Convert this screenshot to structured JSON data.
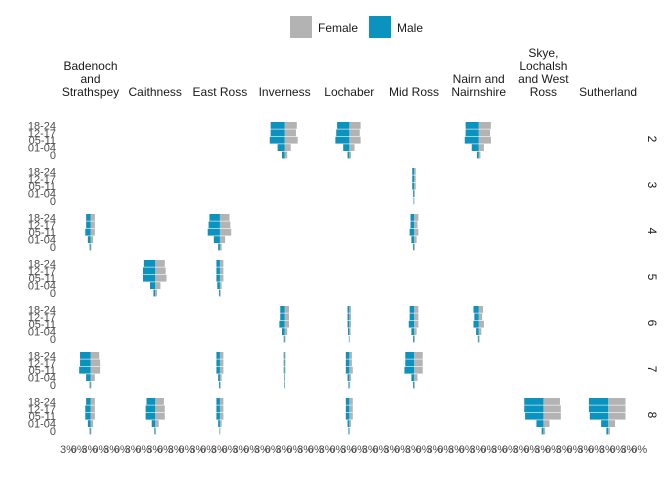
{
  "chart_data": {
    "type": "bar",
    "subtype": "population-pyramid-facet-grid",
    "legend": {
      "position": "top",
      "entries": [
        "Female",
        "Male"
      ]
    },
    "colors": {
      "Female": "#b3b3b3",
      "Male": "#0a93bf"
    },
    "columns": [
      "Badenoch and Strathspey",
      "Caithness",
      "East Ross",
      "Inverness",
      "Lochaber",
      "Mid Ross",
      "Nairn and Nairnshire",
      "Skye, Lochalsh and West Ross",
      "Sutherland"
    ],
    "column_labels": [
      [
        "Badenoch",
        "and",
        "Strathspey"
      ],
      [
        "Caithness"
      ],
      [
        "East Ross"
      ],
      [
        "Inverness"
      ],
      [
        "Lochaber"
      ],
      [
        "Mid Ross"
      ],
      [
        "Nairn and",
        "Nairnshire"
      ],
      [
        "Skye,",
        "Lochalsh",
        "and West",
        "Ross"
      ],
      [
        "Sutherland"
      ]
    ],
    "rows": [
      "2",
      "3",
      "4",
      "5",
      "6",
      "7",
      "8"
    ],
    "age_groups": [
      "0",
      "01-04",
      "05-11",
      "12-17",
      "18-24"
    ],
    "x_ticks": [
      "3%",
      "0%",
      "3%",
      "0%",
      "3%",
      "0%",
      "3%",
      "0%",
      "3%",
      "0%",
      "3%",
      "0%",
      "3%",
      "0%",
      "3%",
      "0%",
      "3%",
      "0%",
      "3%",
      "0%",
      "3%",
      "0%",
      "3%",
      "0%",
      "3%",
      "0%",
      "3%",
      "0%",
      "3%",
      "0%",
      "3%",
      "0%",
      "3%",
      "0%",
      "3%",
      "0%",
      "3%",
      "0%",
      "3%",
      "0%",
      "3%",
      "0%",
      "3%",
      "0%",
      "3%",
      "0%",
      "3%",
      "0%",
      "3%",
      "0%",
      "3%",
      "0%",
      "3%",
      "0%"
    ],
    "x_tick_labels": [
      "3%",
      "0%",
      "3%",
      "0%",
      "3%",
      "0%",
      "3%",
      "0%",
      "3%",
      "0%",
      "3%",
      "0%",
      "3%",
      "0%",
      "3%",
      "0%",
      "3%",
      "0%",
      "3%",
      "0%",
      "3%",
      "0%",
      "3%",
      "0%",
      "3%",
      "0%",
      "3%",
      "0%",
      "3%",
      "0%",
      "3%",
      "0%",
      "3%",
      "0%",
      "3%",
      "0%",
      "3%",
      "0%",
      "3%",
      "0%",
      "3%",
      "0%",
      "3%",
      "0%",
      "3%",
      "0%",
      "3%",
      "0%",
      "3%",
      "0%",
      "3%",
      "0%",
      "3%",
      "0%"
    ],
    "xlim": [
      -3.5,
      3.5
    ],
    "panels": [
      {
        "row": "2",
        "col": "Inverness",
        "male": [
          0.3,
          0.8,
          1.7,
          1.6,
          1.6
        ],
        "female": [
          0.3,
          0.7,
          1.5,
          1.3,
          1.4
        ]
      },
      {
        "row": "2",
        "col": "Lochaber",
        "male": [
          0.2,
          0.7,
          1.6,
          1.5,
          1.4
        ],
        "female": [
          0.2,
          0.6,
          1.3,
          1.2,
          1.3
        ]
      },
      {
        "row": "2",
        "col": "Nairn and Nairnshire",
        "male": [
          0.2,
          0.8,
          1.6,
          1.5,
          1.5
        ],
        "female": [
          0.2,
          0.6,
          1.4,
          1.3,
          1.4
        ]
      },
      {
        "row": "3",
        "col": "Mid Ross",
        "male": [
          0.05,
          0.1,
          0.2,
          0.2,
          0.2
        ],
        "female": [
          0.05,
          0.1,
          0.2,
          0.2,
          0.2
        ]
      },
      {
        "row": "4",
        "col": "Badenoch and Strathspey",
        "male": [
          0.1,
          0.3,
          0.6,
          0.5,
          0.5
        ],
        "female": [
          0.1,
          0.3,
          0.5,
          0.5,
          0.5
        ]
      },
      {
        "row": "4",
        "col": "East Ross",
        "male": [
          0.2,
          0.7,
          1.4,
          1.3,
          1.2
        ],
        "female": [
          0.2,
          0.6,
          1.3,
          1.2,
          1.1
        ]
      },
      {
        "row": "4",
        "col": "Mid Ross",
        "male": [
          0.1,
          0.3,
          0.5,
          0.4,
          0.4
        ],
        "female": [
          0.1,
          0.3,
          0.5,
          0.4,
          0.5
        ]
      },
      {
        "row": "5",
        "col": "Caithness",
        "male": [
          0.2,
          0.6,
          1.4,
          1.4,
          1.3
        ],
        "female": [
          0.2,
          0.6,
          1.3,
          1.2,
          1.1
        ]
      },
      {
        "row": "5",
        "col": "East Ross",
        "male": [
          0.1,
          0.3,
          0.4,
          0.4,
          0.4
        ],
        "female": [
          0.1,
          0.2,
          0.4,
          0.4,
          0.4
        ]
      },
      {
        "row": "6",
        "col": "Inverness",
        "male": [
          0.1,
          0.3,
          0.6,
          0.5,
          0.5
        ],
        "female": [
          0.1,
          0.3,
          0.5,
          0.5,
          0.5
        ]
      },
      {
        "row": "6",
        "col": "Lochaber",
        "male": [
          0.05,
          0.15,
          0.2,
          0.2,
          0.2
        ],
        "female": [
          0.05,
          0.15,
          0.2,
          0.2,
          0.2
        ]
      },
      {
        "row": "6",
        "col": "Mid Ross",
        "male": [
          0.1,
          0.3,
          0.6,
          0.5,
          0.5
        ],
        "female": [
          0.1,
          0.3,
          0.5,
          0.5,
          0.5
        ]
      },
      {
        "row": "6",
        "col": "Nairn and Nairnshire",
        "male": [
          0.1,
          0.3,
          0.6,
          0.5,
          0.6
        ],
        "female": [
          0.1,
          0.3,
          0.6,
          0.4,
          0.5
        ]
      },
      {
        "row": "7",
        "col": "Badenoch and Strathspey",
        "male": [
          0.1,
          0.5,
          1.3,
          1.2,
          1.2
        ],
        "female": [
          0.1,
          0.5,
          1.1,
          1.1,
          1.0
        ]
      },
      {
        "row": "7",
        "col": "East Ross",
        "male": [
          0.1,
          0.2,
          0.4,
          0.4,
          0.4
        ],
        "female": [
          0.1,
          0.2,
          0.4,
          0.4,
          0.4
        ]
      },
      {
        "row": "7",
        "col": "Inverness",
        "male": [
          0.05,
          0.05,
          0.1,
          0.1,
          0.1
        ],
        "female": [
          0.05,
          0.05,
          0.1,
          0.1,
          0.1
        ]
      },
      {
        "row": "7",
        "col": "Lochaber",
        "male": [
          0.1,
          0.2,
          0.4,
          0.4,
          0.4
        ],
        "female": [
          0.1,
          0.2,
          0.4,
          0.3,
          0.3
        ]
      },
      {
        "row": "7",
        "col": "Mid Ross",
        "male": [
          0.1,
          0.3,
          1.1,
          1.0,
          1.0
        ],
        "female": [
          0.1,
          0.4,
          1.0,
          1.0,
          1.0
        ]
      },
      {
        "row": "8",
        "col": "Badenoch and Strathspey",
        "male": [
          0.1,
          0.3,
          0.6,
          0.6,
          0.5
        ],
        "female": [
          0.1,
          0.3,
          0.5,
          0.5,
          0.5
        ]
      },
      {
        "row": "8",
        "col": "Caithness",
        "male": [
          0.1,
          0.4,
          1.1,
          1.1,
          1.0
        ],
        "female": [
          0.1,
          0.4,
          1.1,
          1.1,
          1.0
        ]
      },
      {
        "row": "8",
        "col": "East Ross",
        "male": [
          0.05,
          0.2,
          0.4,
          0.4,
          0.4
        ],
        "female": [
          0.05,
          0.2,
          0.4,
          0.4,
          0.4
        ]
      },
      {
        "row": "8",
        "col": "Lochaber",
        "male": [
          0.1,
          0.2,
          0.4,
          0.4,
          0.4
        ],
        "female": [
          0.05,
          0.2,
          0.4,
          0.4,
          0.4
        ]
      },
      {
        "row": "8",
        "col": "Skye, Lochalsh and West Ross",
        "male": [
          0.2,
          0.8,
          2.1,
          2.2,
          2.2
        ],
        "female": [
          0.2,
          0.7,
          2.0,
          2.0,
          1.9
        ]
      },
      {
        "row": "8",
        "col": "Sutherland",
        "male": [
          0.2,
          0.8,
          2.1,
          2.2,
          2.2
        ],
        "female": [
          0.2,
          0.8,
          2.0,
          2.0,
          2.0
        ]
      }
    ]
  }
}
